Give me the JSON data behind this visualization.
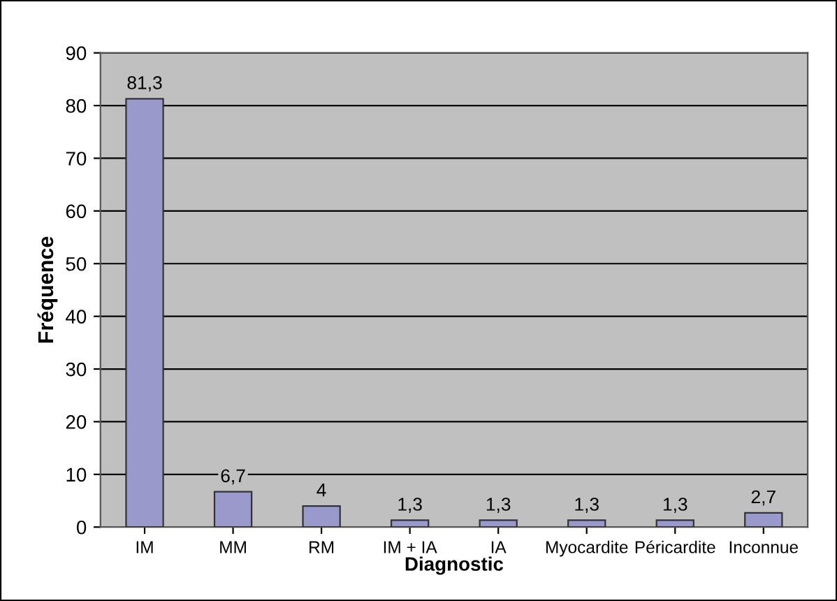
{
  "chart_data": {
    "type": "bar",
    "xlabel": "Diagnostic",
    "ylabel": "Fréquence",
    "categories": [
      "IM",
      "MM",
      "RM",
      "IM + IA",
      "IA",
      "Myocardite",
      "Péricardite",
      "Inconnue"
    ],
    "values": [
      81.3,
      6.7,
      4,
      1.3,
      1.3,
      1.3,
      1.3,
      2.7
    ],
    "value_labels": [
      "81,3",
      "6,7",
      "4",
      "1,3",
      "1,3",
      "1,3",
      "1,3",
      "2,7"
    ],
    "color": "#9999cc",
    "ylim": [
      0,
      90
    ],
    "yticks": [
      0,
      10,
      20,
      30,
      40,
      50,
      60,
      70,
      80,
      90
    ],
    "grid": "y",
    "legend": false
  }
}
